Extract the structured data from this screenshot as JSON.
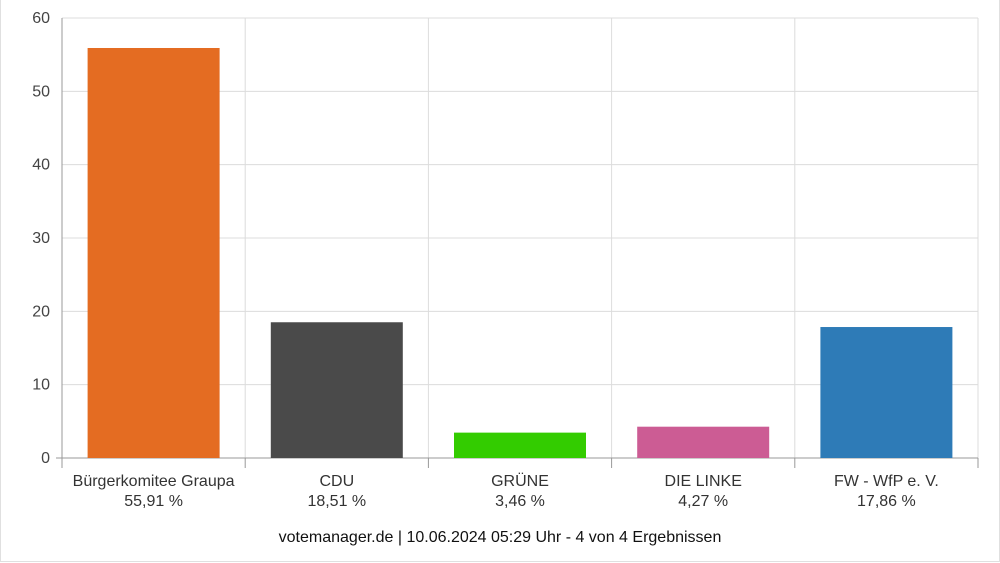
{
  "chart_data": {
    "type": "bar",
    "categories": [
      "Bürgerkomitee Graupa",
      "CDU",
      "GRÜNE",
      "DIE LINKE",
      "FW - WfP e. V."
    ],
    "percent_labels": [
      "55,91 %",
      "18,51 %",
      "3,46 %",
      "4,27 %",
      "17,86 %"
    ],
    "values": [
      55.91,
      18.51,
      3.46,
      4.27,
      17.86
    ],
    "colors": [
      "#e46c22",
      "#4a4a4a",
      "#33cc00",
      "#cc5c94",
      "#2e7bb7"
    ],
    "ylim": [
      0,
      60
    ],
    "yticks": [
      0,
      10,
      20,
      30,
      40,
      50,
      60
    ],
    "grid": true
  },
  "footer": "votemanager.de | 10.06.2024 05:29 Uhr - 4 von 4 Ergebnissen"
}
